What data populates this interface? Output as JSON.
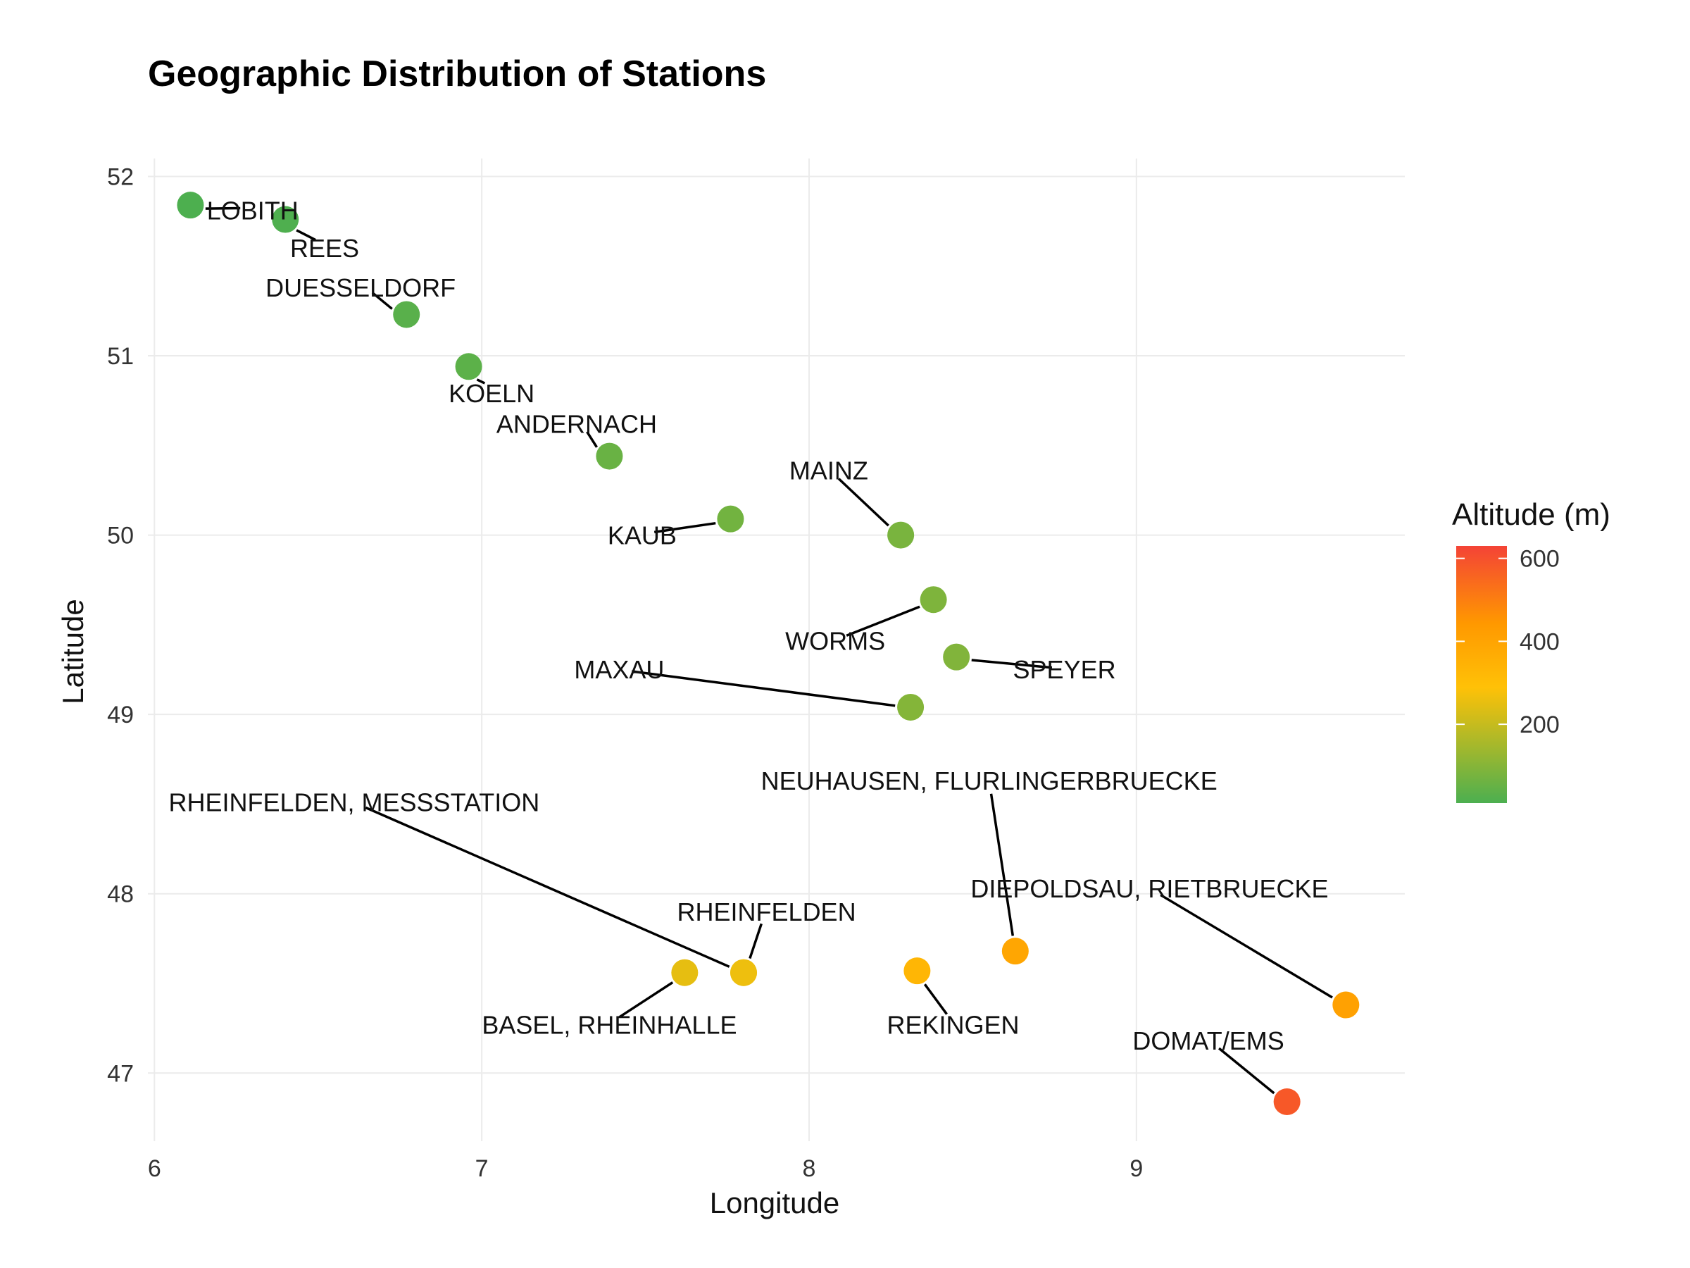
{
  "chart_data": {
    "type": "scatter",
    "title": "Geographic Distribution of Stations",
    "xlabel": "Longitude",
    "ylabel": "Latitude",
    "xlim": [
      5.98,
      9.82
    ],
    "ylim": [
      46.62,
      52.1
    ],
    "xticks": [
      6,
      7,
      8,
      9
    ],
    "yticks": [
      47,
      48,
      49,
      50,
      51,
      52
    ],
    "grid": true,
    "legend": {
      "title": "Altitude (m)",
      "placement": "right",
      "ticks": [
        200,
        400,
        600
      ],
      "range": [
        10,
        630
      ]
    },
    "colors": {
      "low": "#4caf50",
      "mid": "#ffc107",
      "high_mid": "#ff9800",
      "high": "#f44336"
    },
    "points": [
      {
        "name": "LOBITH",
        "lon": 6.11,
        "lat": 51.84,
        "alt": 12,
        "lx": 6.3,
        "ly": 51.76,
        "anchor": "middle"
      },
      {
        "name": "REES",
        "lon": 6.4,
        "lat": 51.76,
        "alt": 15,
        "lx": 6.52,
        "ly": 51.55,
        "anchor": "middle"
      },
      {
        "name": "DUESSELDORF",
        "lon": 6.77,
        "lat": 51.23,
        "alt": 30,
        "lx": 6.63,
        "ly": 51.33,
        "anchor": "middle"
      },
      {
        "name": "KOELN",
        "lon": 6.96,
        "lat": 50.94,
        "alt": 35,
        "lx": 7.03,
        "ly": 50.74,
        "anchor": "middle"
      },
      {
        "name": "ANDERNACH",
        "lon": 7.39,
        "lat": 50.44,
        "alt": 55,
        "lx": 7.29,
        "ly": 50.57,
        "anchor": "middle"
      },
      {
        "name": "KAUB",
        "lon": 7.76,
        "lat": 50.09,
        "alt": 70,
        "lx": 7.49,
        "ly": 49.95,
        "anchor": "middle"
      },
      {
        "name": "MAINZ",
        "lon": 8.28,
        "lat": 50.0,
        "alt": 80,
        "lx": 8.06,
        "ly": 50.31,
        "anchor": "middle"
      },
      {
        "name": "WORMS",
        "lon": 8.38,
        "lat": 49.64,
        "alt": 88,
        "lx": 8.08,
        "ly": 49.36,
        "anchor": "middle"
      },
      {
        "name": "SPEYER",
        "lon": 8.45,
        "lat": 49.32,
        "alt": 92,
        "lx": 8.78,
        "ly": 49.2,
        "anchor": "middle"
      },
      {
        "name": "MAXAU",
        "lon": 8.31,
        "lat": 49.04,
        "alt": 98,
        "lx": 7.42,
        "ly": 49.2,
        "anchor": "middle"
      },
      {
        "name": "RHEINFELDEN, MESSSTATION",
        "lon": 7.8,
        "lat": 47.56,
        "alt": 262,
        "lx": 6.61,
        "ly": 48.46,
        "anchor": "middle"
      },
      {
        "name": "RHEINFELDEN",
        "lon": 7.8,
        "lat": 47.56,
        "alt": 262,
        "lx": 7.87,
        "ly": 47.85,
        "anchor": "middle"
      },
      {
        "name": "BASEL, RHEINHALLE",
        "lon": 7.62,
        "lat": 47.56,
        "alt": 250,
        "lx": 7.39,
        "ly": 47.22,
        "anchor": "middle"
      },
      {
        "name": "REKINGEN",
        "lon": 8.33,
        "lat": 47.57,
        "alt": 330,
        "lx": 8.44,
        "ly": 47.22,
        "anchor": "middle"
      },
      {
        "name": "NEUHAUSEN, FLURLINGERBRUECKE",
        "lon": 8.63,
        "lat": 47.68,
        "alt": 392,
        "lx": 8.55,
        "ly": 48.58,
        "anchor": "middle"
      },
      {
        "name": "DIEPOLDSAU, RIETBRUECKE",
        "lon": 9.64,
        "lat": 47.38,
        "alt": 410,
        "lx": 9.04,
        "ly": 47.98,
        "anchor": "middle"
      },
      {
        "name": "DOMAT/EMS",
        "lon": 9.46,
        "lat": 46.84,
        "alt": 583,
        "lx": 9.22,
        "ly": 47.13,
        "anchor": "middle"
      }
    ]
  }
}
